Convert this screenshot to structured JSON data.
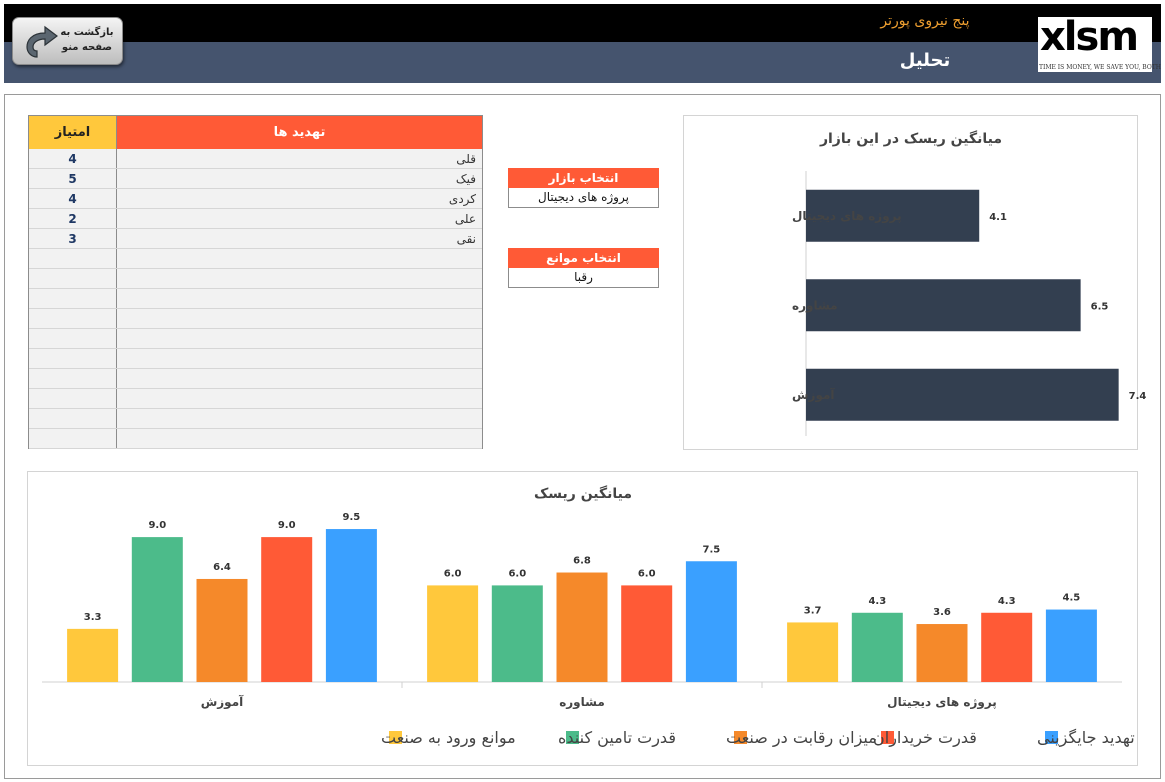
{
  "header": {
    "subtitle": "پنج نیروی پورتر",
    "title": "تحلیل",
    "back_button_label": "بازگشت به صفحه منو",
    "logo_text": "xlsm",
    "logo_slogan": "TIME IS MONEY, WE SAVE YOU, BOTH"
  },
  "threats_table": {
    "col_threats": "تهدید ها",
    "col_score": "امتیاز",
    "rows": [
      {
        "name": "قلی",
        "score": "4"
      },
      {
        "name": "فیک",
        "score": "5"
      },
      {
        "name": "کردی",
        "score": "4"
      },
      {
        "name": "علی",
        "score": "2"
      },
      {
        "name": "نقی",
        "score": "3"
      }
    ],
    "empty_rows": 10
  },
  "selectors": {
    "market": {
      "label": "انتخاب بازار",
      "value": "پروژه های دیجیتال"
    },
    "barrier": {
      "label": "انتخاب موانع",
      "value": "رقبا"
    }
  },
  "colors": {
    "header_bg": "#000000",
    "header_band": "#45546e",
    "accent_orange": "#ff5a36",
    "accent_yellow": "#ffc83c",
    "bar_dark": "#333f50"
  },
  "chart_data": [
    {
      "type": "bar",
      "orientation": "horizontal",
      "title": "میانگین ریسک در این بازار",
      "categories": [
        "پروژه های دیجیتال",
        "مشاوره",
        "آموزش"
      ],
      "values": [
        4.1,
        6.5,
        7.4
      ],
      "xlim": [
        0,
        8
      ],
      "color": "#333f50",
      "grid": false
    },
    {
      "type": "bar",
      "title": "میانگین ریسک",
      "categories": [
        "آموزش",
        "مشاوره",
        "پروژه های دیجیتال"
      ],
      "series": [
        {
          "name": "موانع ورود به صنعت",
          "color": "#ffc83c",
          "values": [
            3.3,
            6.0,
            3.7
          ]
        },
        {
          "name": "قدرت تامین کننده",
          "color": "#4cbb8a",
          "values": [
            9.0,
            6.0,
            4.3
          ]
        },
        {
          "name": "میزان رقابت در صنعت",
          "color": "#f5892a",
          "values": [
            6.4,
            6.8,
            3.6
          ]
        },
        {
          "name": "قدرت خریداران",
          "color": "#ff5a36",
          "values": [
            9.0,
            6.0,
            4.3
          ]
        },
        {
          "name": "تهدید جایگزینی",
          "color": "#3aa0ff",
          "values": [
            9.5,
            7.5,
            4.5
          ]
        }
      ],
      "ylim": [
        0,
        10
      ],
      "legend": "bottom",
      "grid": false
    }
  ]
}
